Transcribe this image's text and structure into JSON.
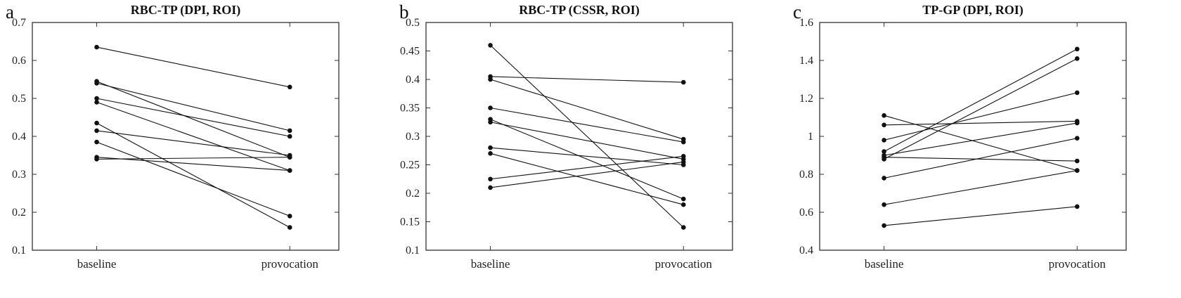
{
  "figure": {
    "panels": [
      {
        "letter": "a"
      },
      {
        "letter": "b"
      },
      {
        "letter": "c"
      }
    ]
  },
  "chart_data": [
    {
      "type": "line",
      "title": "RBC-TP (DPI, ROI)",
      "categories": [
        "baseline",
        "provocation"
      ],
      "ylim": [
        0.1,
        0.7
      ],
      "yticks": [
        0.1,
        0.2,
        0.3,
        0.4,
        0.5,
        0.6,
        0.7
      ],
      "ytick_labels": [
        "0.1",
        "0.2",
        "0.3",
        "0.4",
        "0.5",
        "0.6",
        "0.7"
      ],
      "legend": "none",
      "grid": false,
      "pairs": [
        [
          0.635,
          0.53
        ],
        [
          0.545,
          0.345
        ],
        [
          0.54,
          0.415
        ],
        [
          0.5,
          0.4
        ],
        [
          0.49,
          0.31
        ],
        [
          0.435,
          0.16
        ],
        [
          0.415,
          0.35
        ],
        [
          0.385,
          0.19
        ],
        [
          0.345,
          0.31
        ],
        [
          0.34,
          0.345
        ]
      ]
    },
    {
      "type": "line",
      "title": "RBC-TP (CSSR, ROI)",
      "categories": [
        "baseline",
        "provocation"
      ],
      "ylim": [
        0.1,
        0.5
      ],
      "yticks": [
        0.1,
        0.15,
        0.2,
        0.25,
        0.3,
        0.35,
        0.4,
        0.45,
        0.5
      ],
      "ytick_labels": [
        "0.1",
        "0.15",
        "0.2",
        "0.25",
        "0.3",
        "0.35",
        "0.4",
        "0.45",
        "0.5"
      ],
      "legend": "none",
      "grid": false,
      "pairs": [
        [
          0.46,
          0.14
        ],
        [
          0.405,
          0.395
        ],
        [
          0.4,
          0.295
        ],
        [
          0.35,
          0.29
        ],
        [
          0.33,
          0.19
        ],
        [
          0.325,
          0.26
        ],
        [
          0.28,
          0.25
        ],
        [
          0.27,
          0.18
        ],
        [
          0.225,
          0.265
        ],
        [
          0.21,
          0.255
        ]
      ]
    },
    {
      "type": "line",
      "title": "TP-GP (DPI, ROI)",
      "categories": [
        "baseline",
        "provocation"
      ],
      "ylim": [
        0.4,
        1.6
      ],
      "yticks": [
        0.4,
        0.6,
        0.8,
        1.0,
        1.2,
        1.4,
        1.6
      ],
      "ytick_labels": [
        "0.4",
        "0.6",
        "0.8",
        "1",
        "1.2",
        "1.4",
        "1.6"
      ],
      "legend": "none",
      "grid": false,
      "pairs": [
        [
          1.11,
          0.82
        ],
        [
          1.06,
          1.08
        ],
        [
          0.98,
          1.23
        ],
        [
          0.92,
          1.46
        ],
        [
          0.9,
          1.07
        ],
        [
          0.89,
          0.87
        ],
        [
          0.88,
          1.41
        ],
        [
          0.78,
          0.99
        ],
        [
          0.64,
          0.82
        ],
        [
          0.53,
          0.63
        ]
      ]
    }
  ],
  "style": {
    "line_color": "#111111",
    "marker_color": "#111111",
    "axis_color": "#333333",
    "background": "#ffffff"
  }
}
